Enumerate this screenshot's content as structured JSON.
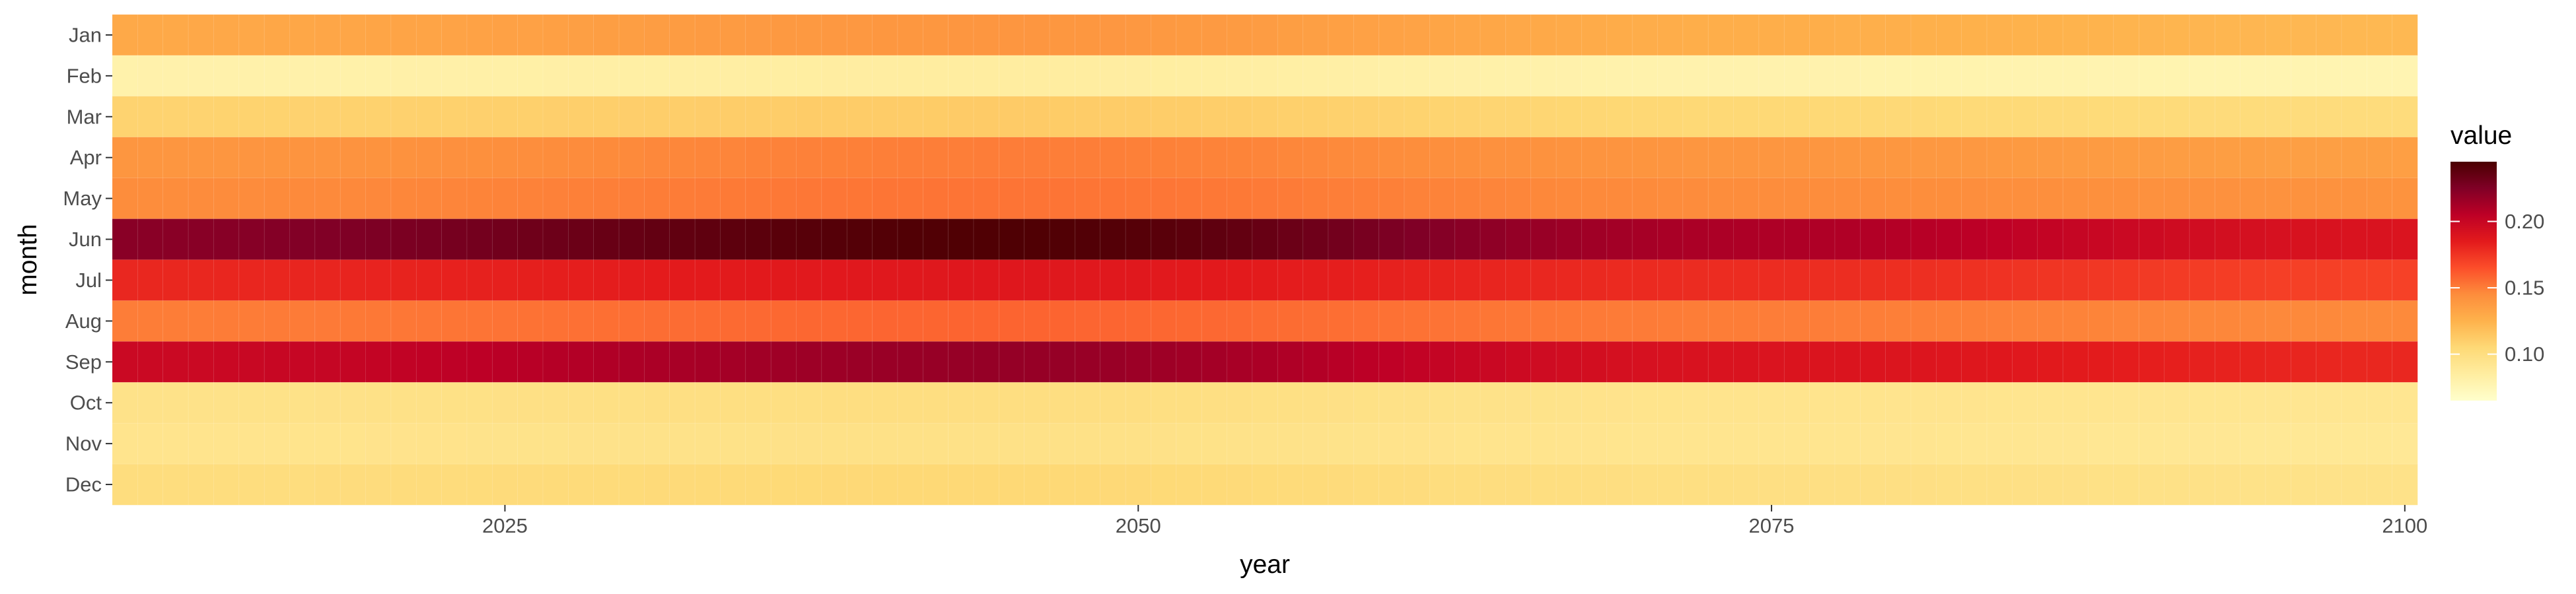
{
  "chart_data": {
    "type": "heatmap",
    "title": "",
    "xlabel": "year",
    "ylabel": "month",
    "x_ticks": [
      2025,
      2050,
      2075,
      2100
    ],
    "x_range": [
      2010,
      2101
    ],
    "months": [
      "Jan",
      "Feb",
      "Mar",
      "Apr",
      "May",
      "Jun",
      "Jul",
      "Aug",
      "Sep",
      "Oct",
      "Nov",
      "Dec"
    ],
    "years_start": 2010,
    "years_end": 2100,
    "month_profiles": [
      {
        "month": "Jan",
        "points": [
          [
            2010,
            0.13
          ],
          [
            2045,
            0.14
          ],
          [
            2075,
            0.127
          ],
          [
            2100,
            0.122
          ]
        ]
      },
      {
        "month": "Feb",
        "points": [
          [
            2010,
            0.08
          ],
          [
            2045,
            0.085
          ],
          [
            2075,
            0.079
          ],
          [
            2100,
            0.077
          ]
        ]
      },
      {
        "month": "Mar",
        "points": [
          [
            2010,
            0.108
          ],
          [
            2045,
            0.112
          ],
          [
            2075,
            0.105
          ],
          [
            2100,
            0.102
          ]
        ]
      },
      {
        "month": "Apr",
        "points": [
          [
            2010,
            0.14
          ],
          [
            2045,
            0.15
          ],
          [
            2075,
            0.14
          ],
          [
            2100,
            0.135
          ]
        ]
      },
      {
        "month": "May",
        "points": [
          [
            2010,
            0.145
          ],
          [
            2045,
            0.153
          ],
          [
            2075,
            0.145
          ],
          [
            2100,
            0.142
          ]
        ]
      },
      {
        "month": "Jun",
        "points": [
          [
            2010,
            0.222
          ],
          [
            2045,
            0.243
          ],
          [
            2075,
            0.21
          ],
          [
            2100,
            0.19
          ]
        ]
      },
      {
        "month": "Jul",
        "points": [
          [
            2010,
            0.18
          ],
          [
            2045,
            0.187
          ],
          [
            2075,
            0.178
          ],
          [
            2100,
            0.17
          ]
        ]
      },
      {
        "month": "Aug",
        "points": [
          [
            2010,
            0.15
          ],
          [
            2045,
            0.158
          ],
          [
            2075,
            0.15
          ],
          [
            2100,
            0.146
          ]
        ]
      },
      {
        "month": "Sep",
        "points": [
          [
            2010,
            0.198
          ],
          [
            2045,
            0.218
          ],
          [
            2075,
            0.19
          ],
          [
            2100,
            0.18
          ]
        ]
      },
      {
        "month": "Oct",
        "points": [
          [
            2010,
            0.096
          ],
          [
            2045,
            0.1
          ],
          [
            2075,
            0.094
          ],
          [
            2100,
            0.092
          ]
        ]
      },
      {
        "month": "Nov",
        "points": [
          [
            2010,
            0.094
          ],
          [
            2045,
            0.097
          ],
          [
            2075,
            0.093
          ],
          [
            2100,
            0.09
          ]
        ]
      },
      {
        "month": "Dec",
        "points": [
          [
            2010,
            0.101
          ],
          [
            2045,
            0.105
          ],
          [
            2075,
            0.099
          ],
          [
            2100,
            0.096
          ]
        ]
      }
    ],
    "legend": {
      "title": "value",
      "ticks": [
        0.1,
        0.15,
        0.2
      ],
      "tick_labels": [
        "0.10",
        "0.15",
        "0.20"
      ],
      "range": [
        0.065,
        0.245
      ],
      "placement": "right"
    },
    "colors": {
      "scale": [
        "#FFFFCC",
        "#FFEDA0",
        "#FED976",
        "#FEB24C",
        "#FD8D3C",
        "#FC4E2A",
        "#E31A1C",
        "#BD0026",
        "#800026",
        "#4a0000"
      ],
      "tick_text": "#4d4d4d",
      "tick_mark": "#333333",
      "cell_border": "rgba(255,255,255,0.22)"
    },
    "grid": false
  }
}
